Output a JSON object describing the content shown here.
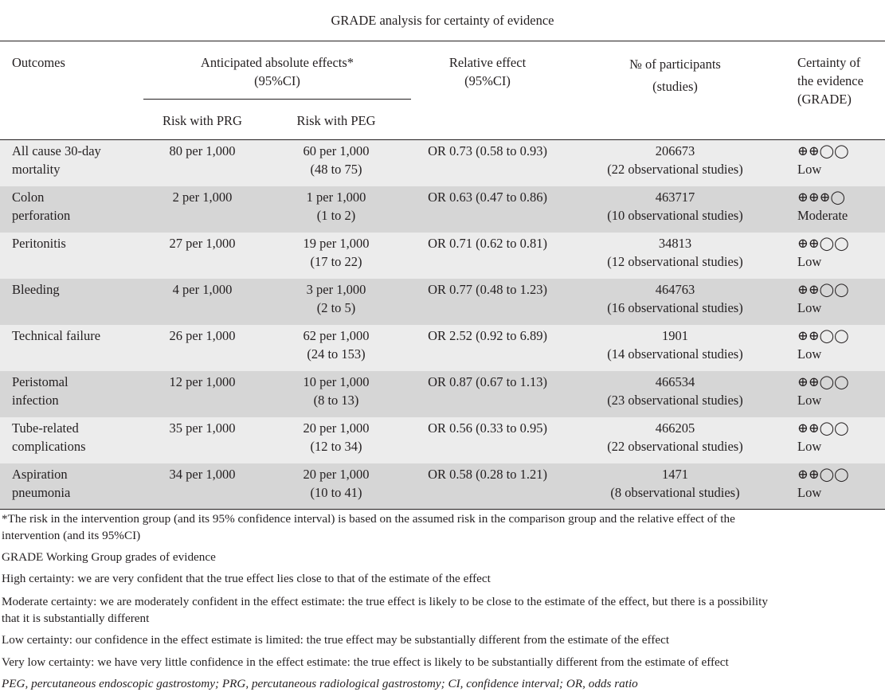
{
  "title": "GRADE analysis for certainty of evidence",
  "headers": {
    "outcomes": "Outcomes",
    "anticipated_line1": "Anticipated absolute effects*",
    "anticipated_line2": "(95%CI)",
    "risk_prg": "Risk with PRG",
    "risk_peg": "Risk with PEG",
    "relative_line1": "Relative effect",
    "relative_line2": "(95%CI)",
    "participants_line1": "№ of participants",
    "participants_line2": "(studies)",
    "certainty_line1": "Certainty of",
    "certainty_line2": "the evidence",
    "certainty_line3": "(GRADE)"
  },
  "rows": [
    {
      "outcome": [
        "All cause 30-day",
        "mortality"
      ],
      "prg": "80 per 1,000",
      "peg": [
        "60 per 1,000",
        "(48 to 75)"
      ],
      "relative": "OR 0.73 (0.58 to 0.93)",
      "participants": [
        "206673",
        "(22 observational studies)"
      ],
      "certainty": [
        "⊕⊕◯◯",
        "Low"
      ]
    },
    {
      "outcome": [
        "Colon",
        "perforation"
      ],
      "prg": "2 per 1,000",
      "peg": [
        "1 per 1,000",
        "(1 to 2)"
      ],
      "relative": "OR 0.63 (0.47 to 0.86)",
      "participants": [
        "463717",
        "(10 observational studies)"
      ],
      "certainty": [
        "⊕⊕⊕◯",
        "Moderate"
      ]
    },
    {
      "outcome": [
        "Peritonitis",
        ""
      ],
      "prg": "27 per 1,000",
      "peg": [
        "19 per 1,000",
        "(17 to 22)"
      ],
      "relative": "OR 0.71 (0.62 to 0.81)",
      "participants": [
        "34813",
        "(12 observational studies)"
      ],
      "certainty": [
        "⊕⊕◯◯",
        "Low"
      ]
    },
    {
      "outcome": [
        "Bleeding",
        ""
      ],
      "prg": "4 per 1,000",
      "peg": [
        "3 per 1,000",
        "(2 to 5)"
      ],
      "relative": "OR 0.77 (0.48 to 1.23)",
      "participants": [
        "464763",
        "(16 observational studies)"
      ],
      "certainty": [
        "⊕⊕◯◯",
        "Low"
      ]
    },
    {
      "outcome": [
        "Technical failure",
        ""
      ],
      "prg": "26 per 1,000",
      "peg": [
        "62 per 1,000",
        "(24 to 153)"
      ],
      "relative": "OR 2.52 (0.92 to 6.89)",
      "participants": [
        "1901",
        "(14 observational studies)"
      ],
      "certainty": [
        "⊕⊕◯◯",
        "Low"
      ]
    },
    {
      "outcome": [
        "Peristomal",
        "infection"
      ],
      "prg": "12 per 1,000",
      "peg": [
        "10 per 1,000",
        "(8 to 13)"
      ],
      "relative": "OR 0.87 (0.67 to 1.13)",
      "participants": [
        "466534",
        "(23 observational studies)"
      ],
      "certainty": [
        "⊕⊕◯◯",
        "Low"
      ]
    },
    {
      "outcome": [
        "Tube-related",
        "complications"
      ],
      "prg": "35 per 1,000",
      "peg": [
        "20 per 1,000",
        "(12 to 34)"
      ],
      "relative": "OR 0.56 (0.33 to 0.95)",
      "participants": [
        "466205",
        "(22 observational studies)"
      ],
      "certainty": [
        "⊕⊕◯◯",
        "Low"
      ]
    },
    {
      "outcome": [
        "Aspiration",
        "pneumonia"
      ],
      "prg": "34 per 1,000",
      "peg": [
        "20 per 1,000",
        "(10 to 41)"
      ],
      "relative": "OR 0.58 (0.28 to 1.21)",
      "participants": [
        "1471",
        "(8 observational studies)"
      ],
      "certainty": [
        "⊕⊕◯◯",
        "Low"
      ]
    }
  ],
  "footnotes": {
    "asterisk_line1": "*The risk in the intervention group (and its 95% confidence interval) is based on the assumed risk in the comparison group and the relative effect of the",
    "asterisk_line2": "intervention (and its 95%CI)",
    "grade_heading": "GRADE Working Group grades of evidence",
    "high": "High certainty: we are very confident that the true effect lies close to that of the estimate of the effect",
    "moderate_line1": "Moderate certainty: we are moderately confident in the effect estimate: the true effect is likely to be close to the estimate of the effect, but there is a possibility",
    "moderate_line2": "that it is substantially different",
    "low": "Low certainty: our confidence in the effect estimate is limited: the true effect may be substantially different from the estimate of the effect",
    "very_low": "Very low certainty: we have very little confidence in the effect estimate: the true effect is likely to be substantially different from the estimate of effect",
    "abbreviations": "PEG, percutaneous endoscopic gastrostomy; PRG, percutaneous radiological gastrostomy; CI, confidence interval; OR, odds ratio"
  },
  "colors": {
    "light_row": "#ececec",
    "dark_row": "#d6d6d6",
    "text": "#231f20"
  }
}
